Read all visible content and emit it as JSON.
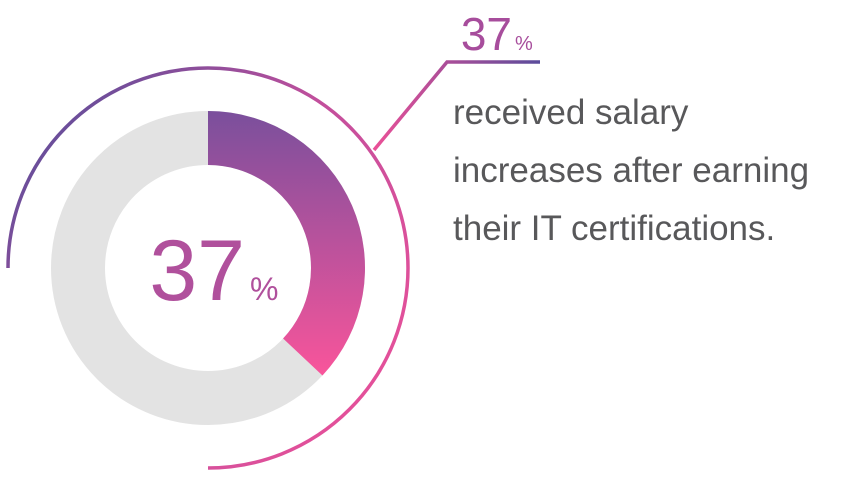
{
  "chart_data": {
    "type": "donut",
    "values": [
      37
    ],
    "unit": "%",
    "max": 100,
    "color_start": "#7a4f9c",
    "color_end": "#fb559b",
    "track_color": "#e3e3e3",
    "caption": [
      "received salary",
      "increases after earning",
      "their IT certifications."
    ]
  }
}
